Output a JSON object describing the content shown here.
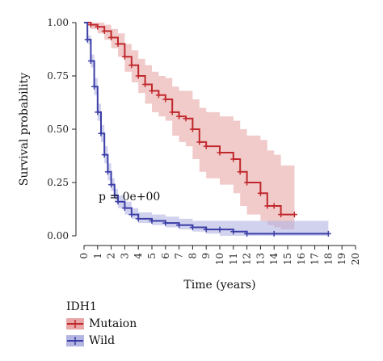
{
  "chart_data": {
    "type": "line",
    "subtype": "kaplan-meier",
    "xlabel": "Time (years)",
    "ylabel": "Survival probability",
    "xlim": [
      0,
      20
    ],
    "ylim": [
      0,
      1
    ],
    "x_ticks": [
      "0",
      "1",
      "2",
      "3",
      "4",
      "5",
      "6",
      "7",
      "8",
      "9",
      "10",
      "11",
      "12",
      "13",
      "14",
      "15",
      "16",
      "17",
      "18",
      "19",
      "20"
    ],
    "y_ticks": [
      "0.00",
      "0.25",
      "0.50",
      "0.75",
      "1.00"
    ],
    "grid": false,
    "annotation": "p = 0e+00",
    "legend": {
      "title": "IDH1",
      "placement": "bottom-left",
      "items": [
        "Mutaion",
        "Wild"
      ]
    },
    "series": [
      {
        "name": "Mutaion",
        "color": "#c0282d",
        "band_color": "#e8a6a6",
        "points": [
          {
            "x": 0,
            "y": 1.0
          },
          {
            "x": 0.5,
            "y": 0.99
          },
          {
            "x": 1.0,
            "y": 0.98
          },
          {
            "x": 1.5,
            "y": 0.96
          },
          {
            "x": 2.0,
            "y": 0.93
          },
          {
            "x": 2.5,
            "y": 0.9
          },
          {
            "x": 3.0,
            "y": 0.84
          },
          {
            "x": 3.5,
            "y": 0.8
          },
          {
            "x": 4.0,
            "y": 0.75
          },
          {
            "x": 4.5,
            "y": 0.71
          },
          {
            "x": 5.0,
            "y": 0.68
          },
          {
            "x": 5.5,
            "y": 0.66
          },
          {
            "x": 6.0,
            "y": 0.64
          },
          {
            "x": 6.5,
            "y": 0.58
          },
          {
            "x": 7.0,
            "y": 0.56
          },
          {
            "x": 7.5,
            "y": 0.55
          },
          {
            "x": 8.0,
            "y": 0.5
          },
          {
            "x": 8.5,
            "y": 0.44
          },
          {
            "x": 9.0,
            "y": 0.42
          },
          {
            "x": 10.0,
            "y": 0.39
          },
          {
            "x": 11.0,
            "y": 0.36
          },
          {
            "x": 11.5,
            "y": 0.3
          },
          {
            "x": 12.0,
            "y": 0.25
          },
          {
            "x": 13.0,
            "y": 0.2
          },
          {
            "x": 13.5,
            "y": 0.14
          },
          {
            "x": 14.0,
            "y": 0.14
          },
          {
            "x": 14.5,
            "y": 0.1
          },
          {
            "x": 15.5,
            "y": 0.1
          }
        ],
        "band_upper": [
          1.0,
          1.0,
          1.0,
          0.99,
          0.97,
          0.95,
          0.9,
          0.87,
          0.83,
          0.8,
          0.77,
          0.75,
          0.74,
          0.7,
          0.68,
          0.68,
          0.64,
          0.6,
          0.58,
          0.56,
          0.54,
          0.5,
          0.47,
          0.45,
          0.4,
          0.38,
          0.33,
          0.33
        ],
        "band_lower": [
          1.0,
          0.97,
          0.95,
          0.92,
          0.88,
          0.84,
          0.77,
          0.72,
          0.67,
          0.62,
          0.58,
          0.56,
          0.54,
          0.47,
          0.44,
          0.42,
          0.36,
          0.3,
          0.27,
          0.24,
          0.2,
          0.14,
          0.1,
          0.07,
          0.05,
          0.04,
          0.03,
          0.03
        ]
      },
      {
        "name": "Wild",
        "color": "#3b3ea6",
        "band_color": "#b3b4e2",
        "points": [
          {
            "x": 0,
            "y": 1.0
          },
          {
            "x": 0.25,
            "y": 0.92
          },
          {
            "x": 0.5,
            "y": 0.82
          },
          {
            "x": 0.75,
            "y": 0.7
          },
          {
            "x": 1.0,
            "y": 0.58
          },
          {
            "x": 1.25,
            "y": 0.48
          },
          {
            "x": 1.5,
            "y": 0.38
          },
          {
            "x": 1.75,
            "y": 0.3
          },
          {
            "x": 2.0,
            "y": 0.24
          },
          {
            "x": 2.25,
            "y": 0.19
          },
          {
            "x": 2.5,
            "y": 0.16
          },
          {
            "x": 3.0,
            "y": 0.13
          },
          {
            "x": 3.5,
            "y": 0.1
          },
          {
            "x": 4.0,
            "y": 0.08
          },
          {
            "x": 5.0,
            "y": 0.07
          },
          {
            "x": 6.0,
            "y": 0.06
          },
          {
            "x": 7.0,
            "y": 0.05
          },
          {
            "x": 8.0,
            "y": 0.04
          },
          {
            "x": 9.0,
            "y": 0.03
          },
          {
            "x": 10.0,
            "y": 0.03
          },
          {
            "x": 11.0,
            "y": 0.02
          },
          {
            "x": 12.0,
            "y": 0.01
          },
          {
            "x": 14.0,
            "y": 0.01
          },
          {
            "x": 18.0,
            "y": 0.01
          }
        ],
        "band_upper": [
          1.0,
          0.94,
          0.85,
          0.74,
          0.62,
          0.52,
          0.42,
          0.34,
          0.27,
          0.22,
          0.19,
          0.16,
          0.13,
          0.11,
          0.1,
          0.09,
          0.08,
          0.07,
          0.07,
          0.07,
          0.07,
          0.07,
          0.07,
          0.07
        ],
        "band_lower": [
          1.0,
          0.9,
          0.79,
          0.66,
          0.54,
          0.44,
          0.34,
          0.26,
          0.21,
          0.16,
          0.13,
          0.1,
          0.08,
          0.06,
          0.05,
          0.04,
          0.03,
          0.02,
          0.01,
          0.0,
          0.0,
          0.0,
          0.0,
          0.0
        ]
      }
    ]
  }
}
